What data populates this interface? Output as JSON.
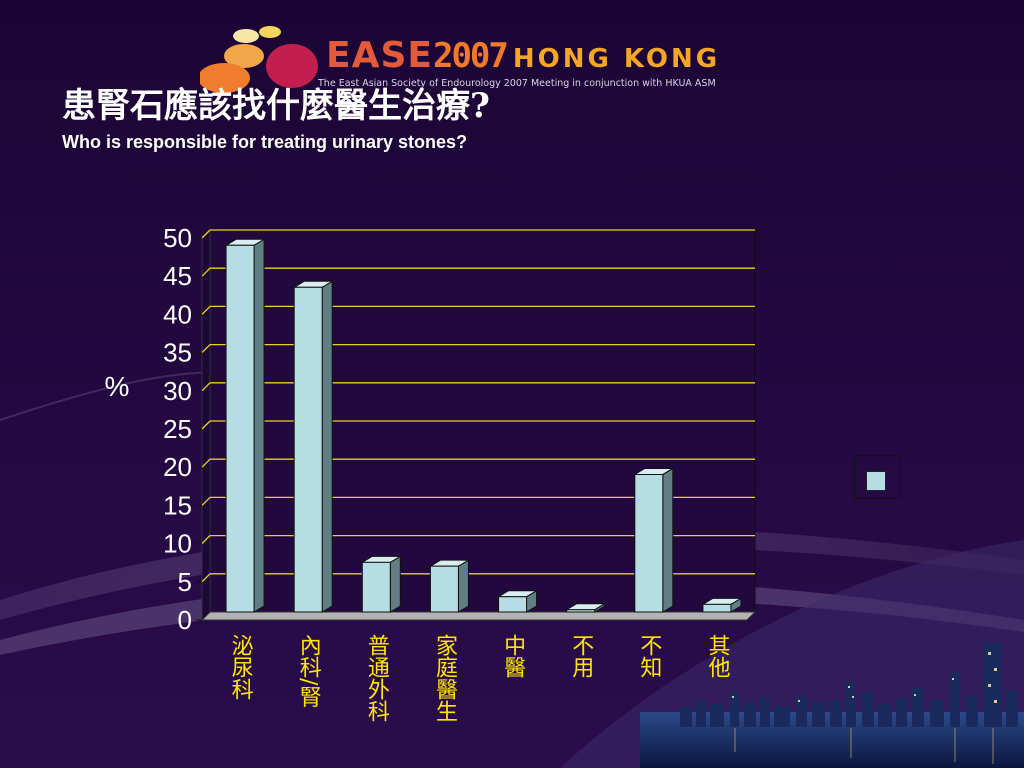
{
  "logo": {
    "name": "EASE",
    "year": "2007",
    "city": "HONG KONG",
    "subtitle": "The East Asian Society of Endourology 2007 Meeting in conjunction with HKUA ASM"
  },
  "title_zh": "患腎石應該找什麼醫生治療?",
  "title_en": "Who is responsible for treating urinary stones?",
  "colors": {
    "background": "#22083f",
    "bar_front": "#b6dde3",
    "bar_side": "#5f7f84",
    "bar_top": "#d9eef1",
    "gridline": "#e8d21a",
    "category_text": "#ffe600"
  },
  "chart_data": {
    "type": "bar",
    "categories": [
      "泌尿科",
      "內科/腎",
      "普通外科",
      "家庭醫生",
      "中醫",
      "不用",
      "不知",
      "其他"
    ],
    "values": [
      48,
      42.5,
      6.5,
      6,
      2,
      0.3,
      18,
      1
    ],
    "ylabel": "%",
    "ylim": [
      0,
      50
    ],
    "yticks": [
      "0",
      "5",
      "10",
      "15",
      "20",
      "25",
      "30",
      "35",
      "40",
      "45",
      "50"
    ],
    "grid": true,
    "legend": "right"
  }
}
